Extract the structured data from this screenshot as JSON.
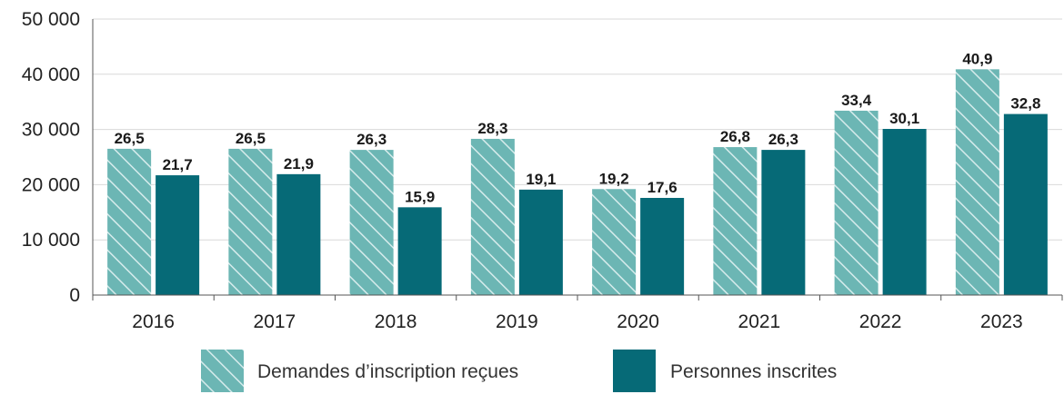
{
  "chart_data": {
    "type": "bar",
    "categories": [
      "2016",
      "2017",
      "2018",
      "2019",
      "2020",
      "2021",
      "2022",
      "2023"
    ],
    "series": [
      {
        "name": "Demandes d’inscription reçues",
        "values": [
          26500,
          26500,
          26300,
          28300,
          19200,
          26800,
          33400,
          40900
        ],
        "labels": [
          "26,5",
          "26,5",
          "26,3",
          "28,3",
          "19,2",
          "26,8",
          "33,4",
          "40,9"
        ],
        "color": "#6cb6b4",
        "pattern": "diagonal-hatch"
      },
      {
        "name": "Personnes inscrites",
        "values": [
          21700,
          21900,
          15900,
          19100,
          17600,
          26300,
          30100,
          32800
        ],
        "labels": [
          "21,7",
          "21,9",
          "15,9",
          "19,1",
          "17,6",
          "26,3",
          "30,1",
          "32,8"
        ],
        "color": "#066a77",
        "pattern": "solid"
      }
    ],
    "yticks": [
      0,
      10000,
      20000,
      30000,
      40000,
      50000
    ],
    "ytick_labels": [
      "0",
      "10 000",
      "20 000",
      "30 000",
      "40 000",
      "50 000"
    ],
    "ylim": [
      0,
      50000
    ],
    "grid": true,
    "legend_position": "bottom"
  }
}
